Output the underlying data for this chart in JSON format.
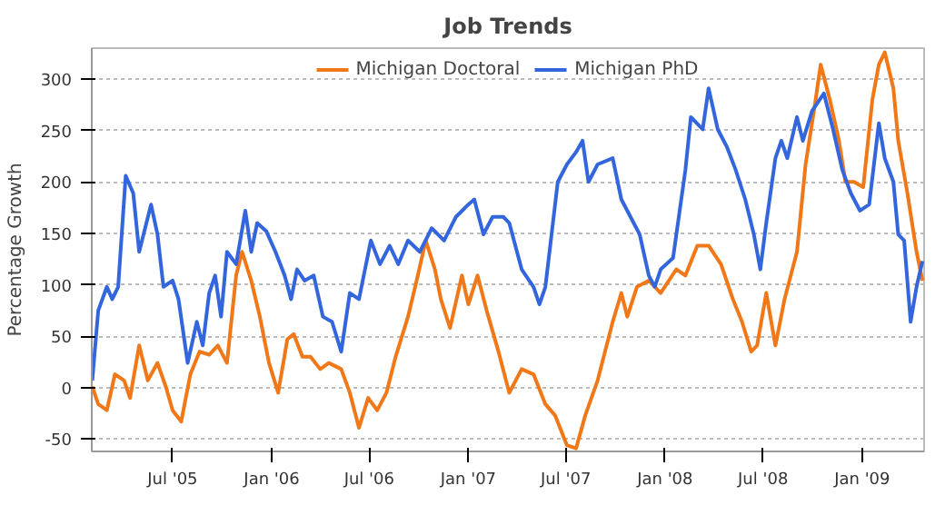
{
  "chart_data": {
    "type": "line",
    "title": "Job Trends",
    "ylabel": "Percentage Growth",
    "xlim": [
      "2005-02-01",
      "2009-04-26"
    ],
    "ylim": [
      -62,
      330
    ],
    "xticks": [
      {
        "value": "2005-07-01",
        "label": "Jul '05"
      },
      {
        "value": "2006-01-01",
        "label": "Jan '06"
      },
      {
        "value": "2006-07-01",
        "label": "Jul '06"
      },
      {
        "value": "2007-01-01",
        "label": "Jan '07"
      },
      {
        "value": "2007-07-01",
        "label": "Jul '07"
      },
      {
        "value": "2008-01-01",
        "label": "Jan '08"
      },
      {
        "value": "2008-07-01",
        "label": "Jul '08"
      },
      {
        "value": "2009-01-01",
        "label": "Jan '09"
      }
    ],
    "yticks": [
      -50,
      0,
      50,
      100,
      150,
      200,
      250,
      300
    ],
    "grid": "y",
    "legend": "top",
    "line_style": "solid",
    "series": [
      {
        "name": "Michigan Doctoral",
        "color": "#f07818",
        "x": [
          "2005-02-02",
          "2005-02-13",
          "2005-03-01",
          "2005-03-16",
          "2005-04-02",
          "2005-04-13",
          "2005-04-30",
          "2005-05-16",
          "2005-06-03",
          "2005-06-19",
          "2005-07-01",
          "2005-07-17",
          "2005-08-03",
          "2005-08-20",
          "2005-09-07",
          "2005-09-23",
          "2005-10-10",
          "2005-10-27",
          "2005-11-07",
          "2005-11-24",
          "2005-12-10",
          "2005-12-27",
          "2006-01-13",
          "2006-01-30",
          "2006-02-11",
          "2006-02-27",
          "2006-03-14",
          "2006-04-01",
          "2006-04-17",
          "2006-05-10",
          "2006-05-26",
          "2006-06-12",
          "2006-06-29",
          "2006-07-16",
          "2006-08-02",
          "2006-08-19",
          "2006-09-11",
          "2006-09-27",
          "2006-10-14",
          "2006-10-31",
          "2006-11-11",
          "2006-11-28",
          "2006-12-20",
          "2007-01-01",
          "2007-01-18",
          "2007-02-04",
          "2007-02-26",
          "2007-03-18",
          "2007-04-10",
          "2007-05-02",
          "2007-05-24",
          "2007-06-11",
          "2007-07-03",
          "2007-07-20",
          "2007-08-06",
          "2007-08-29",
          "2007-09-26",
          "2007-10-12",
          "2007-10-23",
          "2007-11-10",
          "2007-12-02",
          "2007-12-24",
          "2008-01-22",
          "2008-02-08",
          "2008-03-01",
          "2008-03-22",
          "2008-04-14",
          "2008-05-06",
          "2008-05-23",
          "2008-06-09",
          "2008-06-20",
          "2008-07-07",
          "2008-07-24",
          "2008-08-10",
          "2008-09-02",
          "2008-09-18",
          "2008-10-05",
          "2008-10-16",
          "2008-11-02",
          "2008-11-19",
          "2008-12-01",
          "2008-12-17",
          "2009-01-03",
          "2009-01-20",
          "2009-02-01",
          "2009-02-12",
          "2009-02-28",
          "2009-03-09",
          "2009-03-26",
          "2009-04-12",
          "2009-04-23"
        ],
        "values": [
          1,
          -16,
          -22,
          13,
          7,
          -10,
          41,
          7,
          24,
          0,
          -22,
          -33,
          13,
          35,
          32,
          41,
          24,
          109,
          132,
          104,
          69,
          24,
          -5,
          47,
          52,
          30,
          30,
          18,
          24,
          18,
          -5,
          -39,
          -10,
          -22,
          -5,
          30,
          69,
          104,
          143,
          115,
          86,
          58,
          109,
          81,
          109,
          75,
          35,
          -5,
          18,
          13,
          -16,
          -27,
          -56,
          -59,
          -27,
          7,
          64,
          92,
          69,
          98,
          104,
          92,
          115,
          109,
          138,
          138,
          120,
          86,
          64,
          35,
          41,
          92,
          41,
          86,
          132,
          217,
          274,
          314,
          280,
          240,
          200,
          200,
          195,
          280,
          314,
          326,
          291,
          240,
          189,
          132,
          104
        ]
      },
      {
        "name": "Michigan PhD",
        "color": "#3366dd",
        "x": [
          "2005-02-02",
          "2005-02-13",
          "2005-03-01",
          "2005-03-11",
          "2005-03-22",
          "2005-04-05",
          "2005-04-19",
          "2005-04-30",
          "2005-05-11",
          "2005-05-22",
          "2005-06-03",
          "2005-06-14",
          "2005-07-01",
          "2005-07-12",
          "2005-07-29",
          "2005-08-15",
          "2005-08-26",
          "2005-09-07",
          "2005-09-18",
          "2005-09-29",
          "2005-10-10",
          "2005-10-27",
          "2005-11-13",
          "2005-11-24",
          "2005-12-05",
          "2005-12-22",
          "2006-01-08",
          "2006-01-25",
          "2006-02-06",
          "2006-02-17",
          "2006-03-03",
          "2006-03-20",
          "2006-04-06",
          "2006-04-23",
          "2006-05-10",
          "2006-05-26",
          "2006-06-12",
          "2006-07-04",
          "2006-07-21",
          "2006-08-08",
          "2006-08-24",
          "2006-09-11",
          "2006-10-03",
          "2006-10-25",
          "2006-11-17",
          "2006-12-09",
          "2007-01-01",
          "2007-01-12",
          "2007-01-29",
          "2007-02-15",
          "2007-03-07",
          "2007-03-18",
          "2007-04-10",
          "2007-05-02",
          "2007-05-13",
          "2007-05-24",
          "2007-06-16",
          "2007-07-03",
          "2007-07-20",
          "2007-08-01",
          "2007-08-12",
          "2007-08-29",
          "2007-09-26",
          "2007-10-12",
          "2007-10-29",
          "2007-11-15",
          "2007-12-02",
          "2007-12-13",
          "2007-12-24",
          "2008-01-16",
          "2008-02-08",
          "2008-02-18",
          "2008-03-11",
          "2008-03-22",
          "2008-04-08",
          "2008-04-25",
          "2008-05-11",
          "2008-05-29",
          "2008-06-14",
          "2008-06-26",
          "2008-07-07",
          "2008-07-24",
          "2008-08-04",
          "2008-08-15",
          "2008-09-02",
          "2008-09-13",
          "2008-09-30",
          "2008-10-22",
          "2008-11-08",
          "2008-11-25",
          "2008-12-11",
          "2008-12-28",
          "2009-01-14",
          "2009-02-01",
          "2009-02-12",
          "2009-02-28",
          "2009-03-09",
          "2009-03-20",
          "2009-04-01",
          "2009-04-12",
          "2009-04-23"
        ],
        "values": [
          7,
          75,
          98,
          86,
          98,
          206,
          189,
          132,
          155,
          178,
          149,
          98,
          104,
          86,
          24,
          64,
          41,
          92,
          109,
          69,
          132,
          120,
          172,
          132,
          160,
          152,
          132,
          109,
          86,
          115,
          104,
          109,
          69,
          64,
          35,
          92,
          86,
          143,
          120,
          138,
          120,
          143,
          132,
          155,
          143,
          166,
          178,
          183,
          149,
          166,
          166,
          160,
          115,
          98,
          81,
          98,
          200,
          217,
          229,
          240,
          200,
          217,
          223,
          183,
          166,
          149,
          109,
          98,
          115,
          126,
          212,
          263,
          251,
          291,
          251,
          234,
          212,
          183,
          149,
          115,
          160,
          223,
          240,
          223,
          263,
          240,
          269,
          286,
          251,
          212,
          189,
          172,
          178,
          257,
          223,
          200,
          149,
          143,
          64,
          98,
          123
        ]
      }
    ]
  }
}
